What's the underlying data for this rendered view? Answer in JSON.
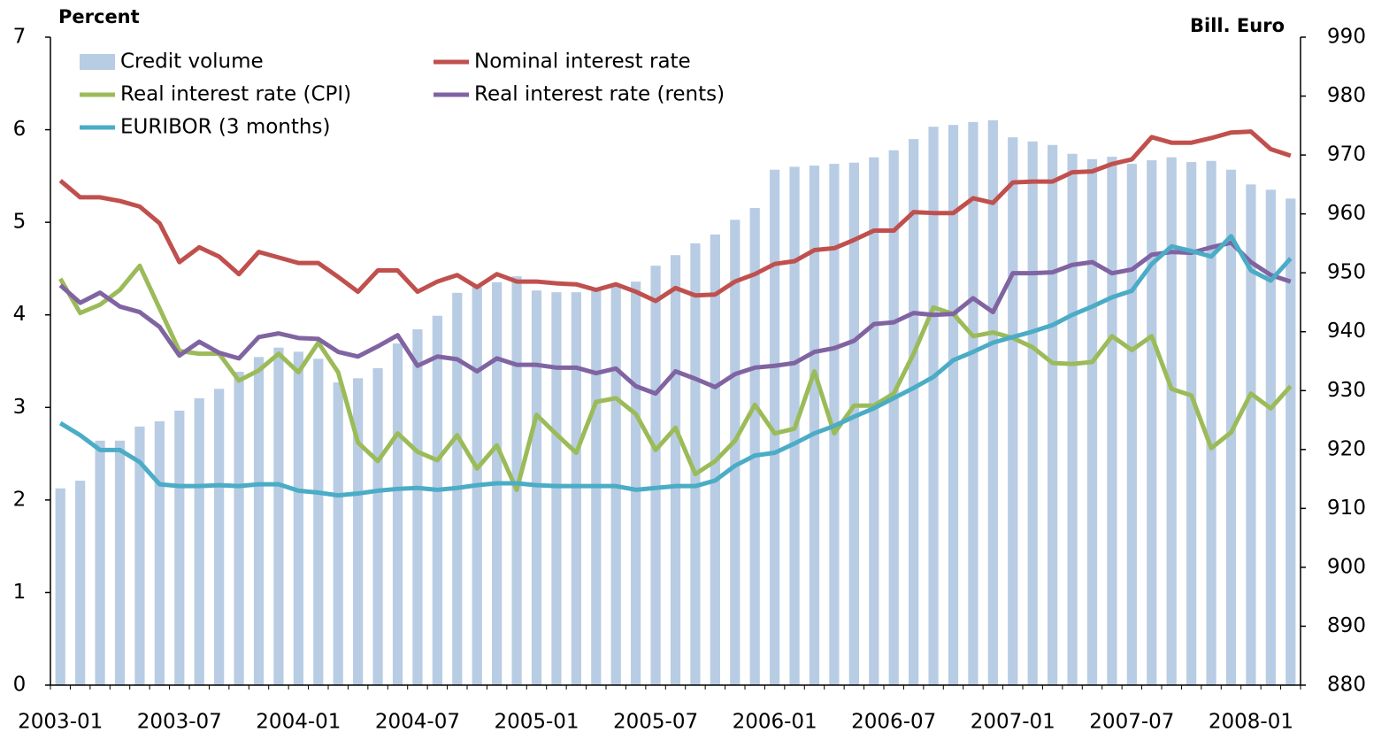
{
  "chart_data": {
    "type": "bar",
    "y_label": "Percent",
    "y2_label": "Bill. Euro",
    "categories": [
      "2003-01",
      null,
      null,
      null,
      null,
      null,
      "2003-07",
      null,
      null,
      null,
      null,
      null,
      "2004-01",
      null,
      null,
      null,
      null,
      null,
      "2004-07",
      null,
      null,
      null,
      null,
      null,
      "2005-01",
      null,
      null,
      null,
      null,
      null,
      "2005-07",
      null,
      null,
      null,
      null,
      null,
      "2006-01",
      null,
      null,
      null,
      null,
      null,
      "2006-07",
      null,
      null,
      null,
      null,
      null,
      "2007-01",
      null,
      null,
      null,
      null,
      null,
      "2007-07",
      null,
      null,
      null,
      null,
      null,
      "2008-01",
      null,
      null
    ],
    "ylim": [
      0,
      7
    ],
    "yticks": [
      0,
      1,
      2,
      3,
      4,
      5,
      6,
      7
    ],
    "y2lim": [
      880,
      990
    ],
    "y2ticks": [
      880,
      890,
      900,
      910,
      920,
      930,
      940,
      950,
      960,
      970,
      980,
      990
    ],
    "legend": "top-left",
    "series": [
      {
        "name": "Credit volume",
        "type": "bar",
        "axis": "y2",
        "color": "#b8cce4",
        "values": [
          913.4,
          914.7,
          921.5,
          921.5,
          923.9,
          924.8,
          926.6,
          928.7,
          930.3,
          933.2,
          935.7,
          937.3,
          936.6,
          935.4,
          931.4,
          932.1,
          933.8,
          938,
          940.4,
          942.7,
          946.6,
          947.8,
          948.4,
          949.4,
          947,
          946.7,
          946.7,
          946.9,
          947.8,
          948.5,
          951.2,
          953,
          955,
          956.5,
          959,
          961,
          967.5,
          968,
          968.2,
          968.5,
          968.7,
          969.6,
          970.8,
          972.7,
          974.8,
          975.1,
          975.6,
          975.9,
          973,
          972.3,
          971.7,
          970.2,
          969.3,
          969.7,
          968.5,
          969.1,
          969.6,
          968.8,
          969,
          967.5,
          965,
          964.1,
          962.6
        ]
      },
      {
        "name": "Nominal interest rate",
        "type": "line",
        "color": "#c0504d",
        "values": [
          5.45,
          5.27,
          5.27,
          5.23,
          5.17,
          4.99,
          4.57,
          4.73,
          4.63,
          4.44,
          4.68,
          4.62,
          4.56,
          4.56,
          4.41,
          4.25,
          4.48,
          4.48,
          4.25,
          4.36,
          4.43,
          4.3,
          4.44,
          4.36,
          4.36,
          4.34,
          4.33,
          4.27,
          4.33,
          4.25,
          4.15,
          4.29,
          4.21,
          4.22,
          4.36,
          4.44,
          4.55,
          4.58,
          4.7,
          4.72,
          4.81,
          4.91,
          4.91,
          5.11,
          5.1,
          5.1,
          5.26,
          5.21,
          5.43,
          5.44,
          5.44,
          5.54,
          5.55,
          5.63,
          5.68,
          5.92,
          5.86,
          5.86,
          5.91,
          5.97,
          5.98,
          5.79,
          5.72
        ]
      },
      {
        "name": "Real interest rate (CPI)",
        "type": "line",
        "color": "#9bbb59",
        "values": [
          4.39,
          4.02,
          4.11,
          4.27,
          4.53,
          4.07,
          3.61,
          3.58,
          3.58,
          3.29,
          3.4,
          3.58,
          3.38,
          3.7,
          3.38,
          2.62,
          2.42,
          2.72,
          2.52,
          2.43,
          2.7,
          2.34,
          2.59,
          2.11,
          2.92,
          2.71,
          2.51,
          3.06,
          3.1,
          2.93,
          2.54,
          2.78,
          2.28,
          2.42,
          2.64,
          3.03,
          2.72,
          2.77,
          3.39,
          2.72,
          3.02,
          3.02,
          3.15,
          3.58,
          4.08,
          4.01,
          3.77,
          3.81,
          3.75,
          3.65,
          3.48,
          3.47,
          3.49,
          3.77,
          3.62,
          3.77,
          3.2,
          3.13,
          2.56,
          2.73,
          3.15,
          2.99,
          3.23
        ]
      },
      {
        "name": "Real interest rate (rents)",
        "type": "line",
        "color": "#8064a2",
        "values": [
          4.32,
          4.13,
          4.24,
          4.09,
          4.03,
          3.87,
          3.56,
          3.71,
          3.59,
          3.53,
          3.76,
          3.8,
          3.75,
          3.74,
          3.6,
          3.55,
          3.66,
          3.78,
          3.45,
          3.55,
          3.52,
          3.39,
          3.53,
          3.46,
          3.46,
          3.43,
          3.43,
          3.37,
          3.42,
          3.23,
          3.15,
          3.39,
          3.31,
          3.22,
          3.36,
          3.43,
          3.45,
          3.48,
          3.6,
          3.64,
          3.72,
          3.9,
          3.92,
          4.02,
          4,
          4.01,
          4.18,
          4.03,
          4.45,
          4.45,
          4.46,
          4.54,
          4.57,
          4.45,
          4.49,
          4.65,
          4.68,
          4.67,
          4.73,
          4.78,
          4.57,
          4.43,
          4.36
        ]
      },
      {
        "name": "EURIBOR (3 months)",
        "type": "line",
        "color": "#4bacc6",
        "values": [
          2.83,
          2.7,
          2.54,
          2.54,
          2.41,
          2.17,
          2.15,
          2.15,
          2.16,
          2.15,
          2.17,
          2.17,
          2.1,
          2.08,
          2.05,
          2.07,
          2.1,
          2.12,
          2.13,
          2.11,
          2.13,
          2.16,
          2.18,
          2.18,
          2.16,
          2.15,
          2.15,
          2.15,
          2.15,
          2.11,
          2.13,
          2.15,
          2.15,
          2.21,
          2.37,
          2.48,
          2.51,
          2.61,
          2.72,
          2.8,
          2.9,
          2.99,
          3.1,
          3.21,
          3.33,
          3.51,
          3.6,
          3.7,
          3.76,
          3.82,
          3.89,
          4,
          4.09,
          4.19,
          4.26,
          4.55,
          4.74,
          4.69,
          4.63,
          4.85,
          4.48,
          4.37,
          4.61
        ]
      }
    ]
  }
}
